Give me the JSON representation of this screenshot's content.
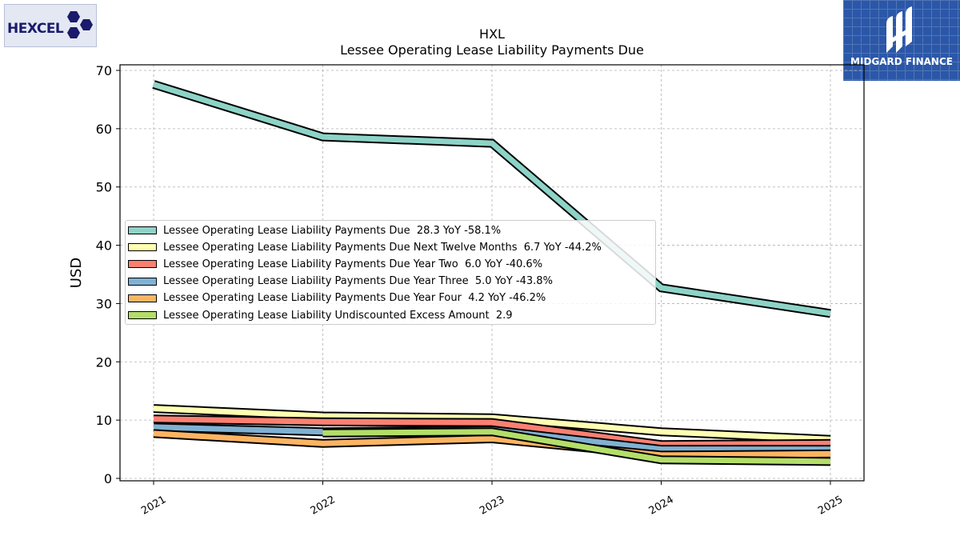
{
  "branding": {
    "left_logo_text": "HEXCEL",
    "right_logo_text": "MIDGARD FINANCE"
  },
  "chart_data": {
    "type": "area",
    "title": "HXL",
    "subtitle": "Lessee Operating Lease Liability Payments Due",
    "xlabel": "",
    "ylabel": "USD",
    "categories": [
      "2021",
      "2022",
      "2023",
      "2024",
      "2025"
    ],
    "yticks": [
      0,
      10,
      20,
      30,
      40,
      50,
      60,
      70
    ],
    "ylim": [
      -0.5,
      71
    ],
    "grid": true,
    "legend_position": "center-left",
    "series": [
      {
        "name": "Lessee Operating Lease Liability Payments Due",
        "legend": "Lessee Operating Lease Liability Payments Due  28.3 YoY -58.1%",
        "color": "#8dd3c7",
        "values": [
          67.6,
          58.6,
          57.5,
          32.7,
          28.3
        ]
      },
      {
        "name": "Lessee Operating Lease Liability Payments Due Next Twelve Months",
        "legend": "Lessee Operating Lease Liability Payments Due Next Twelve Months  6.7 YoY -44.2%",
        "color": "#ffffb3",
        "values": [
          12.0,
          10.7,
          10.4,
          8.0,
          6.7
        ]
      },
      {
        "name": "Lessee Operating Lease Liability Payments Due Year Two",
        "legend": "Lessee Operating Lease Liability Payments Due Year Two  6.0 YoY -40.6%",
        "color": "#fb8072",
        "values": [
          10.2,
          9.7,
          9.6,
          5.8,
          6.0
        ]
      },
      {
        "name": "Lessee Operating Lease Liability Payments Due Year Three",
        "legend": "Lessee Operating Lease Liability Payments Due Year Three  5.0 YoY -43.8%",
        "color": "#80b1d3",
        "values": [
          8.8,
          8.0,
          8.3,
          5.0,
          5.0
        ]
      },
      {
        "name": "Lessee Operating Lease Liability Payments Due Year Four",
        "legend": "Lessee Operating Lease Liability Payments Due Year Four  4.2 YoY -46.2%",
        "color": "#fdb462",
        "values": [
          7.7,
          6.0,
          6.8,
          4.0,
          4.2
        ]
      },
      {
        "name": "Lessee Operating Lease Liability Undiscounted Excess Amount",
        "legend": "Lessee Operating Lease Liability Undiscounted Excess Amount  2.9",
        "color": "#b3de69",
        "values": [
          null,
          7.8,
          8.0,
          3.2,
          2.9
        ]
      }
    ]
  }
}
